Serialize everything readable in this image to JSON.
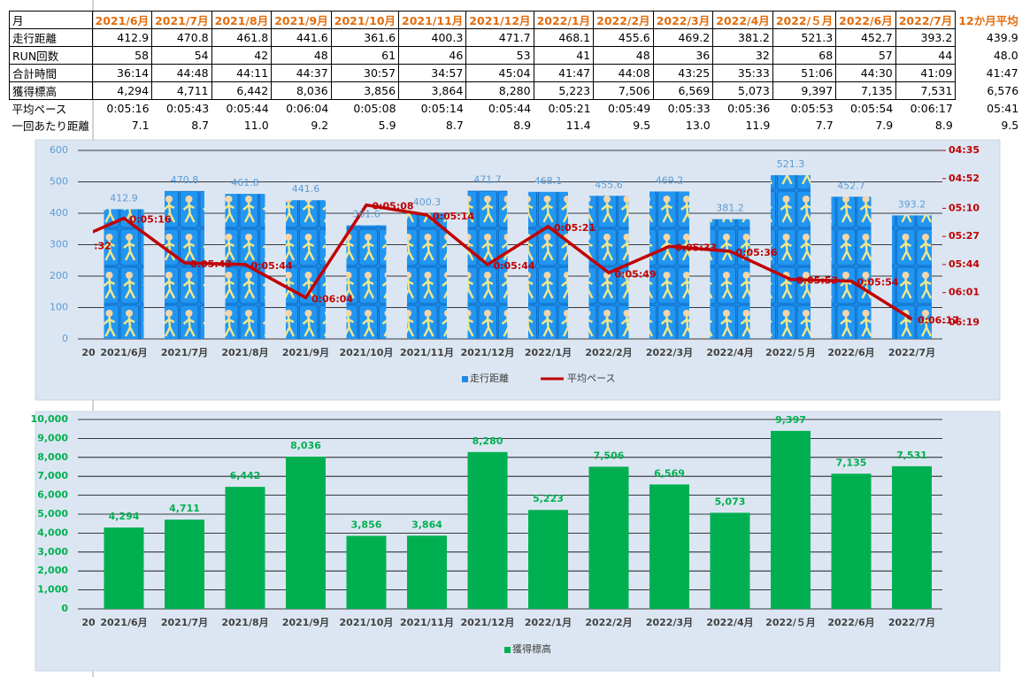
{
  "table": {
    "header": [
      "月",
      "2021/6月",
      "2021/7月",
      "2021/8月",
      "2021/9月",
      "2021/10月",
      "2021/11月",
      "2021/12月",
      "2022/1月",
      "2022/2月",
      "2022/3月",
      "2022/4月",
      "2022/５月",
      "2022/6月",
      "2022/7月",
      "12か月平均"
    ],
    "rows": [
      [
        "走行距離",
        "412.9",
        "470.8",
        "461.8",
        "441.6",
        "361.6",
        "400.3",
        "471.7",
        "468.1",
        "455.6",
        "469.2",
        "381.2",
        "521.3",
        "452.7",
        "393.2",
        "439.9"
      ],
      [
        "RUN回数",
        "58",
        "54",
        "42",
        "48",
        "61",
        "46",
        "53",
        "41",
        "48",
        "36",
        "32",
        "68",
        "57",
        "44",
        "48.0"
      ],
      [
        "合計時間",
        "36:14",
        "44:48",
        "44:11",
        "44:37",
        "30:57",
        "34:57",
        "45:04",
        "41:47",
        "44:08",
        "43:25",
        "35:33",
        "51:06",
        "44:30",
        "41:09",
        "41:47"
      ],
      [
        "獲得標高",
        "4,294",
        "4,711",
        "6,442",
        "8,036",
        "3,856",
        "3,864",
        "8,280",
        "5,223",
        "7,506",
        "6,569",
        "5,073",
        "9,397",
        "7,135",
        "7,531",
        "6,576"
      ],
      [
        "平均ペース",
        "0:05:16",
        "0:05:43",
        "0:05:44",
        "0:06:04",
        "0:05:08",
        "0:05:14",
        "0:05:44",
        "0:05:21",
        "0:05:49",
        "0:05:33",
        "0:05:36",
        "0:05:53",
        "0:05:54",
        "0:06:17",
        "05:41"
      ],
      [
        "一回あたり距離",
        "7.1",
        "8.7",
        "11.0",
        "9.2",
        "5.9",
        "8.7",
        "8.9",
        "11.4",
        "9.5",
        "13.0",
        "11.9",
        "7.7",
        "7.9",
        "8.9",
        "9.5"
      ]
    ]
  },
  "chart_data": [
    {
      "type": "combo",
      "categories": [
        "20",
        "2021/6月",
        "2021/7月",
        "2021/8月",
        "2021/9月",
        "2021/10月",
        "2021/11月",
        "2021/12月",
        "2022/1月",
        "2022/2月",
        "2022/3月",
        "2022/4月",
        "2022/５月",
        "2022/6月",
        "2022/7月"
      ],
      "series": [
        {
          "name": "走行距離",
          "type": "bar",
          "color": "#1e88e5",
          "label_color": "#5b9bd5",
          "values": [
            null,
            412.9,
            470.8,
            461.8,
            441.6,
            361.6,
            400.3,
            471.7,
            468.1,
            455.6,
            469.2,
            381.2,
            521.3,
            452.7,
            393.2
          ]
        },
        {
          "name": "平均ペース",
          "type": "line",
          "axis": "y2",
          "color": "#c00000",
          "values": [
            332,
            316,
            343,
            344,
            364,
            308,
            314,
            344,
            321,
            349,
            333,
            336,
            353,
            354,
            377
          ],
          "value_labels": [
            ":32",
            "0:05:16",
            "0:05:43",
            "0:05:44",
            "0:06:04",
            "0:05:08",
            "0:05:14",
            "0:05:44",
            "0:05:21",
            "0:05:49",
            "0:05:33",
            "0:05:36",
            "0:05:53",
            "0:05:54",
            "0:06:17"
          ]
        }
      ],
      "ylim": [
        0,
        600
      ],
      "yticks": [
        0,
        100,
        200,
        300,
        400,
        500,
        600
      ],
      "y2lim": [
        389,
        275
      ],
      "y2ticks": [
        {
          "value": 275,
          "label": "04:35"
        },
        {
          "value": 292,
          "label": "04:52"
        },
        {
          "value": 310,
          "label": "05:10"
        },
        {
          "value": 327,
          "label": "05:27"
        },
        {
          "value": 344,
          "label": "05:44"
        },
        {
          "value": 361,
          "label": "06:01"
        },
        {
          "value": 379,
          "label": "06:19"
        }
      ],
      "grid": true,
      "legend": "bottom"
    },
    {
      "type": "bar",
      "categories": [
        "20",
        "2021/6月",
        "2021/7月",
        "2021/8月",
        "2021/9月",
        "2021/10月",
        "2021/11月",
        "2021/12月",
        "2022/1月",
        "2022/2月",
        "2022/3月",
        "2022/4月",
        "2022/５月",
        "2022/6月",
        "2022/7月"
      ],
      "series": [
        {
          "name": "獲得標高",
          "type": "bar",
          "color": "#00b050",
          "label_color": "#00b050",
          "values": [
            null,
            4294,
            4711,
            6442,
            8036,
            3856,
            3864,
            8280,
            5223,
            7506,
            6569,
            5073,
            9397,
            7135,
            7531
          ],
          "value_labels": [
            null,
            "4,294",
            "4,711",
            "6,442",
            "8,036",
            "3,856",
            "3,864",
            "8,280",
            "5,223",
            "7,506",
            "6,569",
            "5,073",
            "9,397",
            "7,135",
            "7,531"
          ]
        }
      ],
      "ylim": [
        0,
        10000
      ],
      "yticks": [
        0,
        {
          "value": 1000,
          "label": "1,000"
        },
        {
          "value": 2000,
          "label": "2,000"
        },
        {
          "value": 3000,
          "label": "3,000"
        },
        {
          "value": 4000,
          "label": "4,000"
        },
        {
          "value": 5000,
          "label": "5,000"
        },
        {
          "value": 6000,
          "label": "6,000"
        },
        {
          "value": 7000,
          "label": "7,000"
        },
        {
          "value": 8000,
          "label": "8,000"
        },
        {
          "value": 9000,
          "label": "9,000"
        },
        {
          "value": 10000,
          "label": "10,000"
        }
      ],
      "grid": true,
      "legend": "bottom"
    }
  ]
}
